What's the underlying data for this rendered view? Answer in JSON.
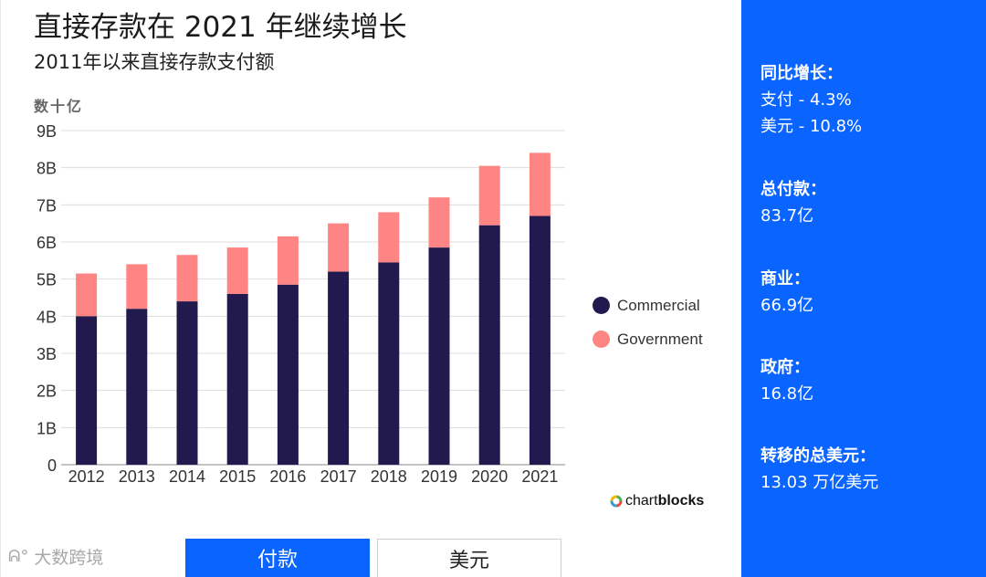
{
  "header": {
    "title": "直接存款在 2021 年继续增长",
    "subtitle": "2011年以来直接存款支付额",
    "units_label": "数十亿"
  },
  "chart_data": {
    "type": "bar",
    "stacked": true,
    "categories": [
      "2012",
      "2013",
      "2014",
      "2015",
      "2016",
      "2017",
      "2018",
      "2019",
      "2020",
      "2021"
    ],
    "series": [
      {
        "name": "Commercial",
        "color": "#22194e",
        "values": [
          4.0,
          4.2,
          4.4,
          4.6,
          4.85,
          5.2,
          5.45,
          5.85,
          6.45,
          6.7
        ]
      },
      {
        "name": "Government",
        "color": "#ff8585",
        "values": [
          1.15,
          1.2,
          1.25,
          1.25,
          1.3,
          1.3,
          1.35,
          1.35,
          1.6,
          1.7
        ]
      }
    ],
    "yticks": [
      "0",
      "1B",
      "2B",
      "3B",
      "4B",
      "5B",
      "6B",
      "7B",
      "8B",
      "9B"
    ],
    "ylim": [
      0,
      9
    ],
    "grid": true,
    "legend_position": "right"
  },
  "brand": {
    "plain": "chart",
    "bold": "blocks"
  },
  "watermark": {
    "text": "大数跨境"
  },
  "tabs": [
    {
      "label": "付款",
      "active": true
    },
    {
      "label": "美元",
      "active": false
    }
  ],
  "sidebar": {
    "yoy_label": "同比增长：",
    "yoy_payments": "支付 - 4.3%",
    "yoy_dollars": "美元 - 10.8%",
    "total_label": "总付款：",
    "total_value": "83.7亿",
    "commercial_label": "商业：",
    "commercial_value": "66.9亿",
    "government_label": "政府：",
    "government_value": "16.8亿",
    "transferred_label": "转移的总美元：",
    "transferred_value": "13.03 万亿美元"
  }
}
